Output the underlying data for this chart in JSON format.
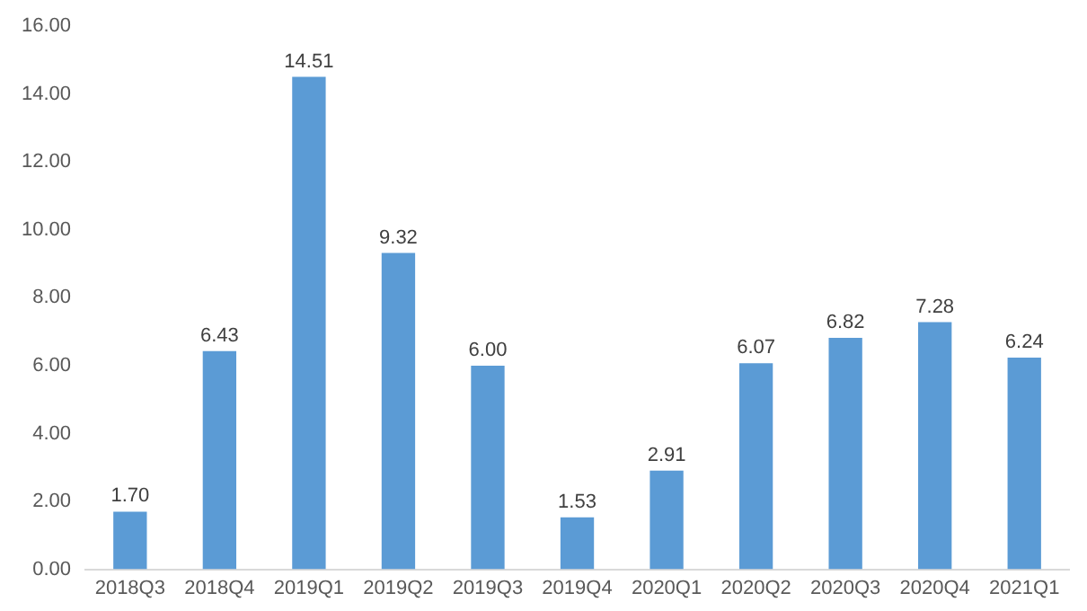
{
  "chart_data": {
    "type": "bar",
    "categories": [
      "2018Q3",
      "2018Q4",
      "2019Q1",
      "2019Q2",
      "2019Q3",
      "2019Q4",
      "2020Q1",
      "2020Q2",
      "2020Q3",
      "2020Q4",
      "2021Q1"
    ],
    "values": [
      1.7,
      6.43,
      14.51,
      9.32,
      6.0,
      1.53,
      2.91,
      6.07,
      6.82,
      7.28,
      6.24
    ],
    "value_labels": [
      "1.70",
      "6.43",
      "14.51",
      "9.32",
      "6.00",
      "1.53",
      "2.91",
      "6.07",
      "6.82",
      "7.28",
      "6.24"
    ],
    "color": "#5b9bd5",
    "ylim": [
      0,
      16
    ],
    "yticks": [
      {
        "value": 0,
        "label": "0.00"
      },
      {
        "value": 2,
        "label": "2.00"
      },
      {
        "value": 4,
        "label": "4.00"
      },
      {
        "value": 6,
        "label": "6.00"
      },
      {
        "value": 8,
        "label": "8.00"
      },
      {
        "value": 10,
        "label": "10.00"
      },
      {
        "value": 12,
        "label": "12.00"
      },
      {
        "value": 14,
        "label": "14.00"
      },
      {
        "value": 16,
        "label": "16.00"
      }
    ],
    "grid": false,
    "legend": false
  }
}
